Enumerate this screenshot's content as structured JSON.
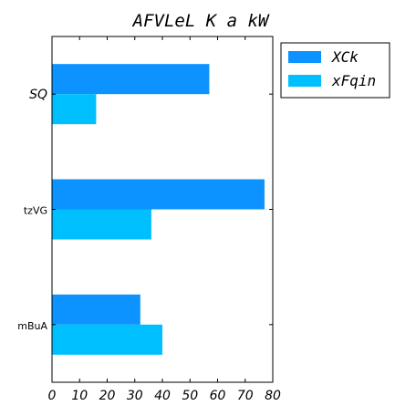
{
  "chart_data": {
    "type": "bar",
    "orientation": "horizontal",
    "title": "AFVLeL K a kW",
    "xlabel": "",
    "ylabel": "",
    "categories": [
      "SQ",
      "tzVG",
      "mBuA"
    ],
    "series": [
      {
        "name": "XCk",
        "values": [
          57,
          77,
          32
        ],
        "color": "#0c93ff"
      },
      {
        "name": "xFqin",
        "values": [
          16,
          36,
          40
        ],
        "color": "#00bfff"
      }
    ],
    "xlim": [
      0,
      80
    ],
    "xticks": [
      "0",
      "10",
      "20",
      "30",
      "40",
      "50",
      "60",
      "70",
      "80"
    ],
    "grid": false,
    "legend_position": "outside-top-right"
  }
}
